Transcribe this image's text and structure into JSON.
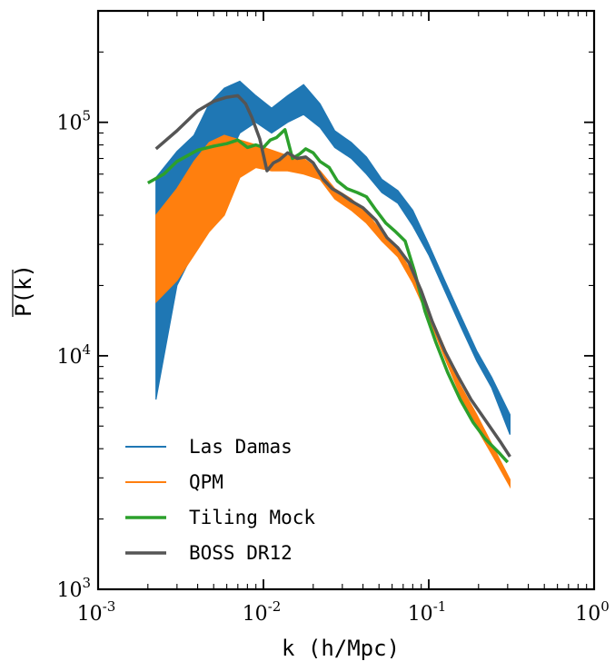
{
  "chart_data": {
    "type": "line",
    "xlabel": "k (h/Mpc)",
    "ylabel": "P(k)",
    "xscale": "log",
    "yscale": "log",
    "xlim": [
      0.001,
      1.0
    ],
    "ylim": [
      1000,
      300000
    ],
    "xticks": [
      {
        "base": "10",
        "exp": "-3",
        "value": 0.001
      },
      {
        "base": "10",
        "exp": "-2",
        "value": 0.01
      },
      {
        "base": "10",
        "exp": "-1",
        "value": 0.1
      },
      {
        "base": "10",
        "exp": "0",
        "value": 1
      }
    ],
    "yticks": [
      {
        "base": "10",
        "exp": "3",
        "value": 1000
      },
      {
        "base": "10",
        "exp": "4",
        "value": 10000
      },
      {
        "base": "10",
        "exp": "5",
        "value": 100000
      }
    ],
    "grid": false,
    "legend_position": "bottom-left",
    "bands": [
      {
        "name": "Las Damas",
        "color": "#1f77b4",
        "x": [
          0.00224,
          0.003,
          0.0038,
          0.0047,
          0.0058,
          0.0072,
          0.009,
          0.0112,
          0.014,
          0.0175,
          0.022,
          0.027,
          0.034,
          0.042,
          0.052,
          0.065,
          0.08,
          0.1,
          0.125,
          0.155,
          0.195,
          0.24,
          0.31
        ],
        "upper": [
          58000,
          75000,
          88000,
          120000,
          140000,
          150000,
          130000,
          115000,
          130000,
          145000,
          120000,
          92000,
          82000,
          71000,
          57000,
          51000,
          42000,
          30000,
          21000,
          15000,
          10500,
          8100,
          5600
        ],
        "lower": [
          6500,
          20000,
          28000,
          42000,
          65000,
          90000,
          100000,
          90000,
          100000,
          108000,
          95000,
          78000,
          70000,
          60000,
          50000,
          45000,
          36000,
          27000,
          19000,
          13500,
          9500,
          7300,
          4600
        ]
      },
      {
        "name": "QPM",
        "color": "#ff7f0e",
        "x": [
          0.00224,
          0.003,
          0.0038,
          0.0047,
          0.0058,
          0.0072,
          0.009,
          0.0112,
          0.014,
          0.0175,
          0.022,
          0.027,
          0.034,
          0.042,
          0.052,
          0.065,
          0.08,
          0.1,
          0.125,
          0.155,
          0.195,
          0.24,
          0.31
        ],
        "upper": [
          40000,
          52000,
          68000,
          82000,
          88000,
          84000,
          80000,
          76000,
          72000,
          70000,
          62000,
          52000,
          47000,
          41000,
          34000,
          28500,
          22500,
          15500,
          10800,
          7500,
          5600,
          4200,
          2950
        ],
        "lower": [
          17000,
          21000,
          27000,
          34000,
          40000,
          58000,
          64000,
          62000,
          62000,
          60000,
          57000,
          47000,
          42000,
          37000,
          31000,
          26500,
          20500,
          14500,
          9800,
          6800,
          4900,
          3800,
          2750
        ]
      }
    ],
    "series": [
      {
        "name": "Tiling Mock",
        "color": "#2ca02c",
        "x": [
          0.002,
          0.0025,
          0.003,
          0.004,
          0.005,
          0.006,
          0.007,
          0.008,
          0.009,
          0.01,
          0.011,
          0.012,
          0.0135,
          0.015,
          0.0165,
          0.018,
          0.02,
          0.022,
          0.025,
          0.028,
          0.032,
          0.037,
          0.042,
          0.048,
          0.055,
          0.063,
          0.072,
          0.082,
          0.095,
          0.11,
          0.13,
          0.155,
          0.185,
          0.22,
          0.27,
          0.3
        ],
        "values": [
          55000,
          60000,
          68000,
          76000,
          79000,
          81000,
          84000,
          78000,
          80000,
          78000,
          84000,
          86000,
          93000,
          70000,
          73000,
          77000,
          74000,
          68000,
          64000,
          56000,
          52000,
          50000,
          48000,
          42000,
          37000,
          34000,
          31000,
          23000,
          15500,
          11500,
          8500,
          6500,
          5200,
          4400,
          3800,
          3500
        ]
      },
      {
        "name": "BOSS DR12",
        "color": "#555555",
        "x": [
          0.00224,
          0.003,
          0.004,
          0.005,
          0.006,
          0.007,
          0.0078,
          0.0085,
          0.0095,
          0.0105,
          0.0115,
          0.0125,
          0.014,
          0.016,
          0.018,
          0.02,
          0.023,
          0.026,
          0.03,
          0.034,
          0.04,
          0.048,
          0.056,
          0.065,
          0.076,
          0.09,
          0.105,
          0.125,
          0.15,
          0.18,
          0.22,
          0.27,
          0.31
        ],
        "values": [
          77000,
          92000,
          112000,
          123000,
          128000,
          130000,
          120000,
          105000,
          85000,
          62000,
          67000,
          69000,
          74000,
          70000,
          71000,
          67000,
          57000,
          52000,
          49000,
          46000,
          43000,
          38000,
          32000,
          29000,
          25000,
          19000,
          14000,
          10500,
          8200,
          6500,
          5300,
          4300,
          3700
        ]
      }
    ],
    "legend": [
      {
        "label": "Las Damas",
        "color": "#1f77b4",
        "style": "thin"
      },
      {
        "label": "QPM",
        "color": "#ff7f0e",
        "style": "thin"
      },
      {
        "label": "Tiling Mock",
        "color": "#2ca02c",
        "style": "thick"
      },
      {
        "label": "BOSS DR12",
        "color": "#555555",
        "style": "thick"
      }
    ]
  }
}
